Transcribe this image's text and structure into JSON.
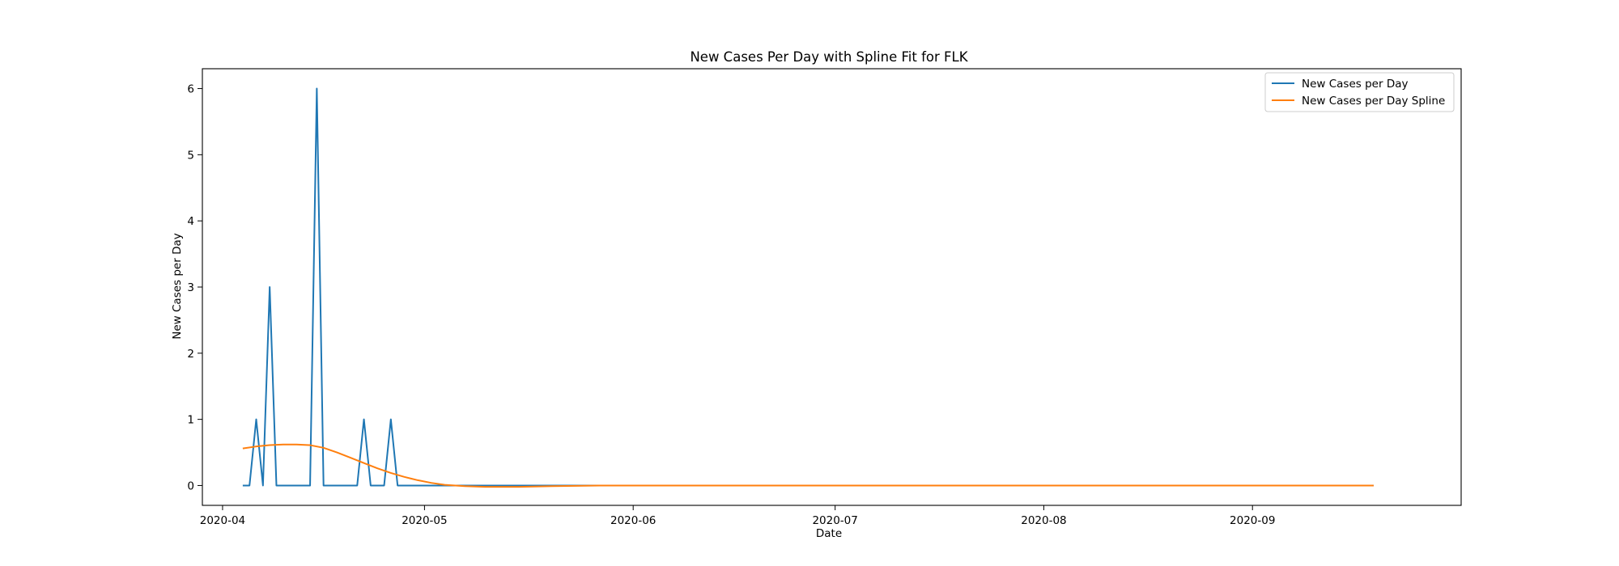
{
  "chart_data": {
    "type": "line",
    "title": "New Cases Per Day with Spline Fit for FLK",
    "xlabel": "Date",
    "ylabel": "New Cases per Day",
    "xlim": [
      "2020-03-29",
      "2020-10-02"
    ],
    "ylim": [
      -0.3,
      6.3
    ],
    "x_ticks": [
      "2020-04",
      "2020-05",
      "2020-06",
      "2020-07",
      "2020-08",
      "2020-09"
    ],
    "y_ticks": [
      0,
      1,
      2,
      3,
      4,
      5,
      6
    ],
    "grid": false,
    "legend_position": "top-right",
    "series": [
      {
        "name": "New Cases per Day",
        "color": "#1f77b4",
        "points": [
          [
            "2020-04-04",
            0
          ],
          [
            "2020-04-05",
            0
          ],
          [
            "2020-04-06",
            1
          ],
          [
            "2020-04-07",
            0
          ],
          [
            "2020-04-08",
            3
          ],
          [
            "2020-04-09",
            0
          ],
          [
            "2020-04-10",
            0
          ],
          [
            "2020-04-11",
            0
          ],
          [
            "2020-04-12",
            0
          ],
          [
            "2020-04-13",
            0
          ],
          [
            "2020-04-14",
            0
          ],
          [
            "2020-04-15",
            6
          ],
          [
            "2020-04-16",
            0
          ],
          [
            "2020-04-17",
            0
          ],
          [
            "2020-04-18",
            0
          ],
          [
            "2020-04-19",
            0
          ],
          [
            "2020-04-20",
            0
          ],
          [
            "2020-04-21",
            0
          ],
          [
            "2020-04-22",
            1
          ],
          [
            "2020-04-23",
            0
          ],
          [
            "2020-04-24",
            0
          ],
          [
            "2020-04-25",
            0
          ],
          [
            "2020-04-26",
            1
          ],
          [
            "2020-04-27",
            0
          ],
          [
            "2020-05-05",
            0
          ],
          [
            "2020-05-20",
            0
          ],
          [
            "2020-06-10",
            0
          ],
          [
            "2020-07-01",
            0
          ],
          [
            "2020-08-01",
            0
          ],
          [
            "2020-09-01",
            0
          ],
          [
            "2020-09-19",
            0
          ]
        ]
      },
      {
        "name": "New Cases per Day Spline",
        "color": "#ff7f0e",
        "points": [
          [
            "2020-04-04",
            0.56
          ],
          [
            "2020-04-06",
            0.59
          ],
          [
            "2020-04-08",
            0.61
          ],
          [
            "2020-04-10",
            0.62
          ],
          [
            "2020-04-12",
            0.62
          ],
          [
            "2020-04-14",
            0.61
          ],
          [
            "2020-04-16",
            0.57
          ],
          [
            "2020-04-18",
            0.5
          ],
          [
            "2020-04-20",
            0.42
          ],
          [
            "2020-04-22",
            0.34
          ],
          [
            "2020-04-24",
            0.26
          ],
          [
            "2020-04-26",
            0.19
          ],
          [
            "2020-04-28",
            0.13
          ],
          [
            "2020-04-30",
            0.08
          ],
          [
            "2020-05-02",
            0.04
          ],
          [
            "2020-05-04",
            0.01
          ],
          [
            "2020-05-07",
            -0.01
          ],
          [
            "2020-05-10",
            -0.02
          ],
          [
            "2020-05-15",
            -0.02
          ],
          [
            "2020-05-20",
            -0.01
          ],
          [
            "2020-05-27",
            0
          ],
          [
            "2020-06-15",
            0
          ],
          [
            "2020-07-15",
            0
          ],
          [
            "2020-08-15",
            0
          ],
          [
            "2020-09-19",
            0
          ]
        ]
      }
    ]
  }
}
